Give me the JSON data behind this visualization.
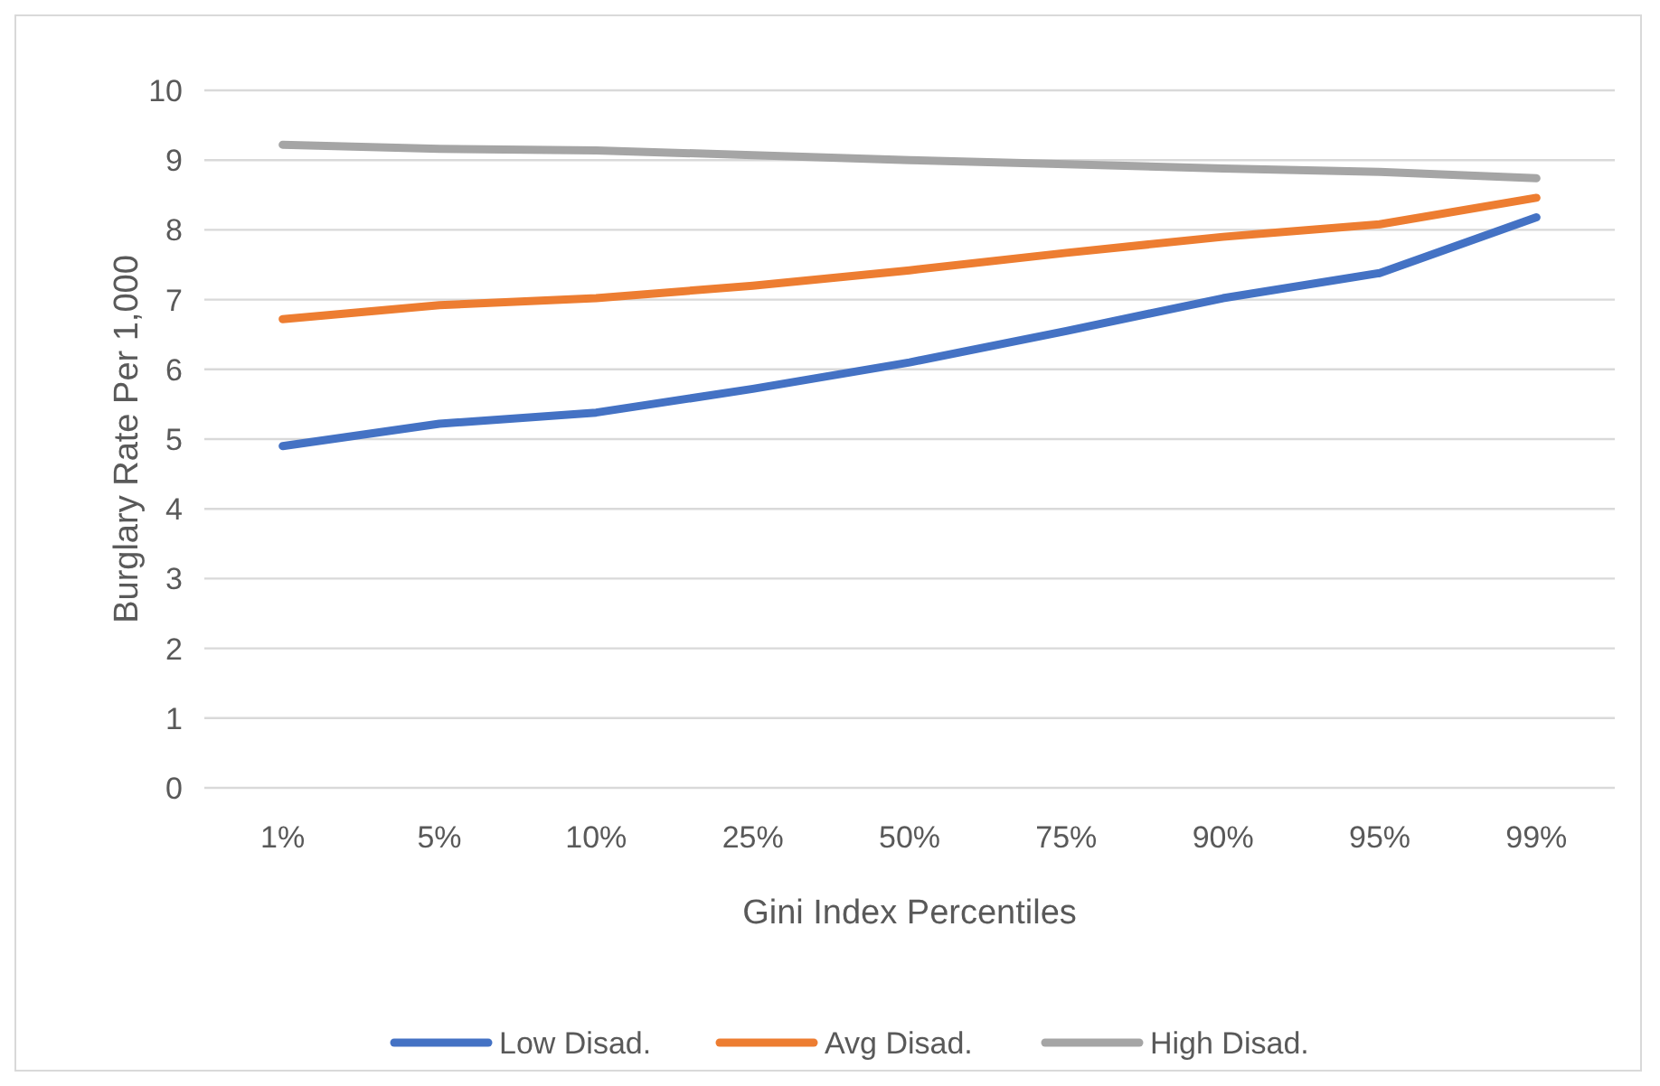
{
  "chart_data": {
    "type": "line",
    "xlabel": "Gini Index Percentiles",
    "ylabel": "Burglary Rate Per 1,000",
    "categories": [
      "1%",
      "5%",
      "10%",
      "25%",
      "50%",
      "75%",
      "90%",
      "95%",
      "99%"
    ],
    "series": [
      {
        "name": "Low Disad.",
        "color": "#4472c4",
        "values": [
          4.9,
          5.22,
          5.38,
          5.72,
          6.1,
          6.55,
          7.02,
          7.38,
          8.18
        ]
      },
      {
        "name": "Avg Disad.",
        "color": "#ed7d31",
        "values": [
          6.72,
          6.92,
          7.02,
          7.2,
          7.42,
          7.67,
          7.9,
          8.08,
          8.46
        ]
      },
      {
        "name": "High Disad.",
        "color": "#a5a5a5",
        "values": [
          9.22,
          9.16,
          9.14,
          9.07,
          9.0,
          8.94,
          8.88,
          8.83,
          8.74
        ]
      }
    ],
    "ylim": [
      0,
      10
    ],
    "yticks": [
      0,
      1,
      2,
      3,
      4,
      5,
      6,
      7,
      8,
      9,
      10
    ],
    "grid": "y",
    "legend": "bottom",
    "marker": "none",
    "line_style": "solid"
  }
}
